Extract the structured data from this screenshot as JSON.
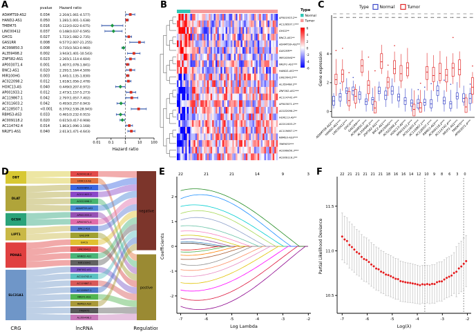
{
  "chart_data": [
    {
      "id": "A",
      "label": "A",
      "type": "forest",
      "col_pvalue": "pvalue",
      "col_hr": "Hazard ratio",
      "xlabel": "Hazard ratio",
      "xticks": [
        0.01,
        0.1,
        1,
        10,
        100
      ],
      "point_up_color": "#d7301f",
      "point_down_color": "#1a9641",
      "bar_color": "#3d5fae",
      "rows": [
        {
          "gene": "ADAMTS9-AS2",
          "p": "0.034",
          "text": "2.204(1.061-4.577)",
          "hr": 2.204,
          "lo": 1.061,
          "hi": 4.577
        },
        {
          "gene": "HAND2-AS1",
          "p": "0.050",
          "text": "1.281(1.001-1.638)",
          "hr": 1.281,
          "lo": 1.001,
          "hi": 1.638
        },
        {
          "gene": "TMEM75",
          "p": "0.016",
          "text": "0.122(0.022-0.675)",
          "hr": 0.122,
          "lo": 0.022,
          "hi": 0.675
        },
        {
          "gene": "LINC00412",
          "p": "0.037",
          "text": "0.148(0.037-0.595)",
          "hr": 0.148,
          "lo": 0.037,
          "hi": 0.595
        },
        {
          "gene": "GHCG",
          "p": "0.027",
          "text": "1.722(1.082-2.735)",
          "hr": 1.722,
          "lo": 1.082,
          "hi": 2.735
        },
        {
          "gene": "GAS1RR",
          "p": "0.008",
          "text": "9.577(2.007-21.255)",
          "hr": 9.577,
          "lo": 2.007,
          "hi": 21.255
        },
        {
          "gene": "AC099850.3",
          "p": "0.008",
          "text": "0.735(0.563-0.960)",
          "hr": 0.735,
          "lo": 0.563,
          "hi": 0.96
        },
        {
          "gene": "AL359498.2",
          "p": "0.002",
          "text": "3.943(1.401-10.543)",
          "hr": 3.943,
          "lo": 1.401,
          "hi": 10.543
        },
        {
          "gene": "ZNF582-AS1",
          "p": "0.023",
          "text": "2.265(1.114-4.604)",
          "hr": 2.265,
          "lo": 1.114,
          "hi": 4.604
        },
        {
          "gene": "AP003071.4",
          "p": "0.001",
          "text": "1.407(1.078-1.841)",
          "hr": 1.407,
          "lo": 1.078,
          "hi": 1.841
        },
        {
          "gene": "BNC2-AS1",
          "p": "0.020",
          "text": "2.291(1.164-4.509)",
          "hr": 2.291,
          "lo": 1.164,
          "hi": 4.509
        },
        {
          "gene": "MIR100HG",
          "p": "0.003",
          "text": "1.441(1.135-1.830)",
          "hr": 1.441,
          "lo": 1.135,
          "hi": 1.83
        },
        {
          "gene": "AC022098.2",
          "p": "0.012",
          "text": "1.618(1.056-2.478)",
          "hr": 1.618,
          "lo": 1.056,
          "hi": 2.478
        },
        {
          "gene": "HOXC13-AS",
          "p": "0.040",
          "text": "0.449(0.207-0.972)",
          "hr": 0.449,
          "lo": 0.207,
          "hi": 0.972
        },
        {
          "gene": "AP001933.2",
          "p": "0.012",
          "text": "2.473(1.157-5.273)",
          "hr": 2.473,
          "lo": 1.157,
          "hi": 5.273
        },
        {
          "gene": "AC119867.1",
          "p": "0.042",
          "text": "2.797(1.057-7.402)",
          "hr": 2.797,
          "lo": 1.057,
          "hi": 7.402
        },
        {
          "gene": "AC011603.2",
          "p": "0.042",
          "text": "0.493(0.257-0.943)",
          "hr": 0.493,
          "lo": 0.257,
          "hi": 0.943
        },
        {
          "gene": "AC128507.1",
          "p": "<0.001",
          "text": "8.370(2.538-28.943)",
          "hr": 8.37,
          "lo": 2.538,
          "hi": 28.943
        },
        {
          "gene": "RBMS3-AS3",
          "p": "0.033",
          "text": "0.461(0.232-0.915)",
          "hr": 0.461,
          "lo": 0.232,
          "hi": 0.915
        },
        {
          "gene": "AC009118.2",
          "p": "0.020",
          "text": "0.615(0.417-0.908)",
          "hr": 0.615,
          "lo": 0.417,
          "hi": 0.908
        },
        {
          "gene": "AC114742.4",
          "p": "0.014",
          "text": "1.863(1.096-3.168)",
          "hr": 1.863,
          "lo": 1.096,
          "hi": 3.168
        },
        {
          "gene": "NR2F1-AS1",
          "p": "0.040",
          "text": "2.613(1.471-4.643)",
          "hr": 2.613,
          "lo": 1.471,
          "hi": 4.643
        }
      ]
    },
    {
      "id": "B",
      "label": "B",
      "type": "heatmap",
      "legend_title": "Type",
      "legend_normal": "Normal",
      "legend_tumor": "Tumor",
      "normal_color": "#2fc6b5",
      "tumor_color": "#f59a9a",
      "scale_ticks": [
        6,
        4,
        2,
        0,
        -2,
        -4,
        -6
      ],
      "n_normal": 8,
      "n_tumor": 52,
      "seed": 7,
      "genes": [
        "AP001933.2**",
        "AC128507.1***",
        "GHCG**",
        "BNC2-AS1**",
        "ADAMTS9-AS2**",
        "GAS1RR**",
        "MIR100HG**",
        "NR2F1-AS1***",
        "HAND2-AS1***",
        "LINC00412***",
        "AL359498.2**",
        "ZNF582-AS1***",
        "AC114742.4**",
        "AP003071.4***",
        "AC022098.2**",
        "HOXC13-AS**",
        "AC011603.2*",
        "AC119867.1**",
        "RBMS3-AS3***",
        "TMEM75***",
        "AC099850.3***",
        "AC009118.2**"
      ]
    },
    {
      "id": "C",
      "label": "C",
      "type": "boxplot",
      "legend_title": "Type",
      "legend_normal": "Normal",
      "legend_tumor": "Tumor",
      "normal_color": "#3a46c8",
      "tumor_color": "#e02424",
      "ylabel": "Gene expression",
      "yticks": [
        0,
        2,
        4
      ],
      "ylim": [
        -0.4,
        6.3
      ],
      "seed": 11,
      "genes": [
        "ADAMTS9-AS2***",
        "HAND2-AS1***",
        "LINC00412***",
        "GHCG***",
        "GAS1RR***",
        "AC099850.3***",
        "AL359498.2***",
        "ZNF582-AS1***",
        "BNC2-AS1***",
        "MIR100HG***",
        "AC022098.2***",
        "HOXC13-AS***",
        "AP001933.2***",
        "AC011603.2***",
        "AC119867.1***",
        "AC128507.1***",
        "RBMS3-AS3***",
        "AC009118.2***",
        "AC114742.4***",
        "NR2F1-AS1***",
        "TMEM75***",
        "AP003071.4***"
      ]
    },
    {
      "id": "D",
      "label": "D",
      "type": "sankey",
      "columns": [
        "CRG",
        "lncRNA",
        "Regulation"
      ],
      "crg": [
        {
          "name": "DBT",
          "color": "#d8c832",
          "units": 2
        },
        {
          "name": "DLAT",
          "color": "#b0a43a",
          "units": 4
        },
        {
          "name": "GCSH",
          "color": "#2aa37a",
          "units": 2
        },
        {
          "name": "LIPT1",
          "color": "#c9b845",
          "units": 2
        },
        {
          "name": "PDHA1",
          "color": "#e04040",
          "units": 4
        },
        {
          "name": "SLC31A1",
          "color": "#6f96c8",
          "units": 8
        }
      ],
      "lnc": [
        {
          "name": "AC009118.2",
          "color": "#e24a4a"
        },
        {
          "name": "HOXC13-AS",
          "color": "#e2703a"
        },
        {
          "name": "AC099850.3",
          "color": "#3a66e2"
        },
        {
          "name": "AC011603.2",
          "color": "#8a46c8"
        },
        {
          "name": "AC022098.2",
          "color": "#46b46e"
        },
        {
          "name": "ADAMTS9-AS2",
          "color": "#4a86d8"
        },
        {
          "name": "AP001933.2",
          "color": "#9650b4"
        },
        {
          "name": "AP003071.4",
          "color": "#e06aa8"
        },
        {
          "name": "BNC2-AS1",
          "color": "#5a78d2"
        },
        {
          "name": "GAS1RR",
          "color": "#a0a030"
        },
        {
          "name": "GHCG",
          "color": "#e0c030"
        },
        {
          "name": "LINC00412",
          "color": "#d84848"
        },
        {
          "name": "HAND2-AS1",
          "color": "#48b478"
        },
        {
          "name": "MIR100HG",
          "color": "#606060"
        },
        {
          "name": "ZNF582-AS1",
          "color": "#7a58c8"
        },
        {
          "name": "AC114742.4",
          "color": "#58c0c0"
        },
        {
          "name": "AC119867.1",
          "color": "#d85858"
        },
        {
          "name": "AC128507.1",
          "color": "#4878c8"
        },
        {
          "name": "NR2F1-AS1",
          "color": "#50b450"
        },
        {
          "name": "RBMS3-AS3",
          "color": "#a89838"
        },
        {
          "name": "TMEM75",
          "color": "#585858"
        },
        {
          "name": "AL359498.2",
          "color": "#c878b8"
        }
      ],
      "reg": [
        {
          "name": "negative",
          "color": "#7c352b",
          "units": 12
        },
        {
          "name": "postive",
          "color": "#9a8a33",
          "units": 10
        }
      ],
      "links": [
        {
          "crg": 0,
          "lnc": 0,
          "reg": 0
        },
        {
          "crg": 0,
          "lnc": 1,
          "reg": 1
        },
        {
          "crg": 1,
          "lnc": 2,
          "reg": 0
        },
        {
          "crg": 1,
          "lnc": 3,
          "reg": 0
        },
        {
          "crg": 1,
          "lnc": 4,
          "reg": 1
        },
        {
          "crg": 1,
          "lnc": 5,
          "reg": 0
        },
        {
          "crg": 2,
          "lnc": 6,
          "reg": 1
        },
        {
          "crg": 2,
          "lnc": 7,
          "reg": 0
        },
        {
          "crg": 3,
          "lnc": 8,
          "reg": 0
        },
        {
          "crg": 3,
          "lnc": 9,
          "reg": 1
        },
        {
          "crg": 4,
          "lnc": 10,
          "reg": 0
        },
        {
          "crg": 4,
          "lnc": 11,
          "reg": 1
        },
        {
          "crg": 4,
          "lnc": 12,
          "reg": 0
        },
        {
          "crg": 4,
          "lnc": 13,
          "reg": 0
        },
        {
          "crg": 5,
          "lnc": 14,
          "reg": 1
        },
        {
          "crg": 5,
          "lnc": 15,
          "reg": 0
        },
        {
          "crg": 5,
          "lnc": 16,
          "reg": 1
        },
        {
          "crg": 5,
          "lnc": 17,
          "reg": 0
        },
        {
          "crg": 5,
          "lnc": 18,
          "reg": 1
        },
        {
          "crg": 5,
          "lnc": 19,
          "reg": 0
        },
        {
          "crg": 5,
          "lnc": 20,
          "reg": 1
        },
        {
          "crg": 5,
          "lnc": 21,
          "reg": 1
        }
      ]
    },
    {
      "id": "E",
      "label": "E",
      "type": "lasso_paths",
      "xlabel": "Log Lambda",
      "ylabel": "Coefficients",
      "top_ticks": [
        22,
        21,
        21,
        14,
        9,
        3
      ],
      "xticks": [
        -7,
        -6,
        -5,
        -4,
        -3,
        -2
      ],
      "yticks": [
        -2,
        -1,
        0,
        1,
        2
      ],
      "xlim": [
        -7.15,
        -1.9
      ],
      "ylim": [
        -2.7,
        2.7
      ],
      "n_lines": 22,
      "seed": 5,
      "palette": [
        "#222222",
        "#e41a1c",
        "#377eb8",
        "#4daf4a",
        "#984ea3",
        "#ff7f00",
        "#d2c500",
        "#a65628",
        "#f781bf",
        "#8c8c8c",
        "#66c2a5",
        "#fc8d62",
        "#8da0cb",
        "#e78ac3",
        "#a6d854",
        "#e0c200",
        "#00ced1",
        "#ff00ff",
        "#1e90ff",
        "#dc143c",
        "#228b22",
        "#8b008b"
      ]
    },
    {
      "id": "F",
      "label": "F",
      "type": "cv_curve",
      "xlabel": "Log(λ)",
      "ylabel": "Partial Likelihood Deviance",
      "top_ticks": [
        "22",
        "21",
        "21",
        "21",
        "21",
        "21",
        "18",
        "16",
        "16",
        "14",
        "12",
        "10",
        "9",
        "8",
        "6",
        "3",
        "0"
      ],
      "xticks": [
        -7,
        -6,
        -5,
        -4,
        -3,
        -2
      ],
      "yticks": [
        "10.5",
        "11.0",
        "11.5"
      ],
      "xlim": [
        -7.2,
        -1.85
      ],
      "ylim": [
        10.3,
        11.8
      ],
      "vlines": [
        -3.7,
        -2.15
      ],
      "point_color": "#e31a1c",
      "bar_color": "#c0c0c0",
      "curve": {
        "x_start": -7,
        "x_end": -2.05,
        "n": 52,
        "min_x": -3.7,
        "min_y": 10.62,
        "a_left": 0.05,
        "a_right": 0.095,
        "err_base": 0.21,
        "seed": 9
      }
    }
  ]
}
